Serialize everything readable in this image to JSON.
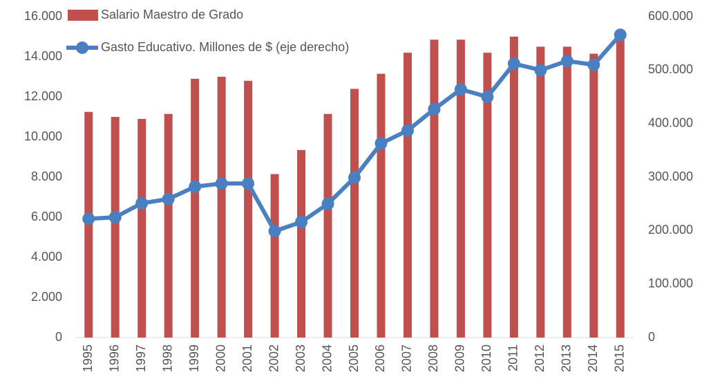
{
  "chart_data": {
    "type": "bar-line",
    "categories": [
      "1995",
      "1996",
      "1997",
      "1998",
      "1999",
      "2000",
      "2001",
      "2002",
      "2003",
      "2004",
      "2005",
      "2006",
      "2007",
      "2008",
      "2009",
      "2010",
      "2011",
      "2012",
      "2013",
      "2014",
      "2015"
    ],
    "series": [
      {
        "name": "Salario Maestro de Grado",
        "type": "bar",
        "color": "#c0504d",
        "values": [
          11250,
          11000,
          10900,
          11150,
          12900,
          13000,
          12800,
          8150,
          9350,
          11150,
          12400,
          13150,
          14200,
          14850,
          14850,
          14200,
          15000,
          14500,
          14500,
          14150,
          14900
        ]
      },
      {
        "name": "Gasto Educativo. Millones de $ (eje derecho)",
        "type": "line",
        "axis": "y2",
        "color": "#4a7fc1",
        "values": [
          222000,
          225000,
          251000,
          259000,
          282000,
          288000,
          288000,
          199000,
          216000,
          250000,
          299000,
          363000,
          387000,
          427000,
          464000,
          450000,
          512000,
          500000,
          517000,
          510000,
          566000
        ]
      }
    ],
    "ylim": [
      0,
      16000
    ],
    "yticks": [
      0,
      {
        "value": 2000,
        "label": "2.000"
      },
      {
        "value": 4000,
        "label": "4.000"
      },
      {
        "value": 6000,
        "label": "6.000"
      },
      {
        "value": 8000,
        "label": "8.000"
      },
      {
        "value": 10000,
        "label": "10.000"
      },
      {
        "value": 12000,
        "label": "12.000"
      },
      {
        "value": 14000,
        "label": "14.000"
      },
      {
        "value": 16000,
        "label": "16.000"
      }
    ],
    "y2lim": [
      0,
      600000
    ],
    "y2ticks": [
      0,
      {
        "value": 100000,
        "label": "100.000"
      },
      {
        "value": 200000,
        "label": "200.000"
      },
      {
        "value": 300000,
        "label": "300.000"
      },
      {
        "value": 400000,
        "label": "400.000"
      },
      {
        "value": 500000,
        "label": "500.000"
      },
      {
        "value": 600000,
        "label": "600.000"
      }
    ],
    "legend": "top-left",
    "grid": false
  }
}
